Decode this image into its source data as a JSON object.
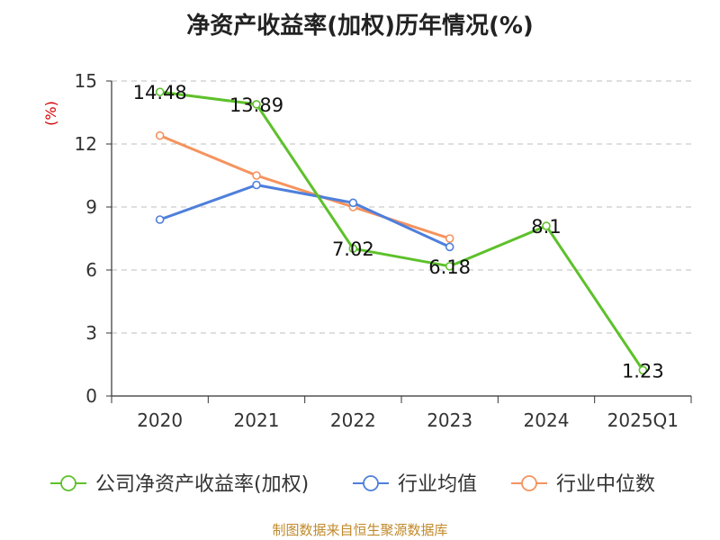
{
  "chart_data": {
    "type": "line",
    "title": "净资产收益率(加权)历年情况(%)",
    "ylabel": "(%)",
    "categories": [
      "2020",
      "2021",
      "2022",
      "2023",
      "2024",
      "2025Q1"
    ],
    "ylim": [
      0,
      15
    ],
    "yticks": [
      0,
      3,
      6,
      9,
      12,
      15
    ],
    "grid": true,
    "legend_position": "bottom",
    "series": [
      {
        "name": "公司净资产收益率(加权)",
        "color": "#5dc12a",
        "values": [
          14.48,
          13.89,
          7.02,
          6.18,
          8.1,
          1.23
        ],
        "labels": [
          "14.48",
          "13.89",
          "7.02",
          "6.18",
          "8.1",
          "1.23"
        ]
      },
      {
        "name": "行业均值",
        "color": "#4e7fdb",
        "values": [
          8.4,
          10.05,
          9.2,
          7.1,
          null,
          null
        ]
      },
      {
        "name": "行业中位数",
        "color": "#f5935e",
        "values": [
          12.4,
          10.5,
          9.0,
          7.5,
          null,
          null
        ]
      }
    ]
  },
  "source_text": "制图数据来自恒生聚源数据库"
}
